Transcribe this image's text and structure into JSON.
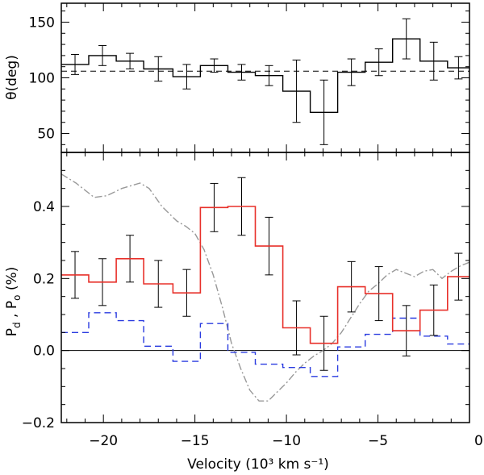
{
  "chart_data": [
    {
      "type": "line",
      "panel": "top",
      "ylabel": "θ(deg)",
      "xlim": [
        -22.3,
        0
      ],
      "ylim": [
        33,
        167
      ],
      "yticks": [
        50,
        100,
        150
      ],
      "reference_line": {
        "y": 106,
        "style": "dashed"
      },
      "series": [
        {
          "name": "theta",
          "style": "step",
          "color": "#000000",
          "bins": [
            {
              "x0": -22.3,
              "x1": -20.8,
              "y": 112,
              "err": 9
            },
            {
              "x0": -20.8,
              "x1": -19.3,
              "y": 120,
              "err": 9
            },
            {
              "x0": -19.3,
              "x1": -17.8,
              "y": 115,
              "err": 7
            },
            {
              "x0": -17.8,
              "x1": -16.2,
              "y": 108,
              "err": 11
            },
            {
              "x0": -16.2,
              "x1": -14.7,
              "y": 101,
              "err": 11
            },
            {
              "x0": -14.7,
              "x1": -13.2,
              "y": 111,
              "err": 6
            },
            {
              "x0": -13.2,
              "x1": -11.7,
              "y": 105,
              "err": 7
            },
            {
              "x0": -11.7,
              "x1": -10.2,
              "y": 102,
              "err": 9
            },
            {
              "x0": -10.2,
              "x1": -8.7,
              "y": 88,
              "err": 28
            },
            {
              "x0": -8.7,
              "x1": -7.2,
              "y": 69,
              "err": 29
            },
            {
              "x0": -7.2,
              "x1": -5.7,
              "y": 105,
              "err": 12
            },
            {
              "x0": -5.7,
              "x1": -4.2,
              "y": 114,
              "err": 12
            },
            {
              "x0": -4.2,
              "x1": -2.7,
              "y": 135,
              "err": 18
            },
            {
              "x0": -2.7,
              "x1": -1.2,
              "y": 115,
              "err": 17
            },
            {
              "x0": -1.2,
              "x1": 0,
              "y": 109,
              "err": 10
            }
          ]
        }
      ]
    },
    {
      "type": "line",
      "panel": "bottom",
      "xlabel": "Velocity (10³ km s⁻¹)",
      "ylabel": "P_d , P_o (%)",
      "ylabel_parts": {
        "p": "P",
        "sub_d": "d",
        "sep": " , ",
        "sub_o": "o",
        "pct": " (%)"
      },
      "xlim": [
        -22.3,
        0
      ],
      "ylim": [
        -0.2,
        0.55
      ],
      "yticks": [
        -0.2,
        0.0,
        0.2,
        0.4
      ],
      "ytick_labels": [
        "−0.2",
        "0.0",
        "0.2",
        "0.4"
      ],
      "xticks": [
        -20,
        -15,
        -10,
        -5,
        0
      ],
      "xtick_labels": [
        "−20",
        "−15",
        "−10",
        "−5",
        "0"
      ],
      "reference_line": {
        "y": 0,
        "style": "solid"
      },
      "series": [
        {
          "name": "Pd",
          "style": "step",
          "color": "#e8302a",
          "bins": [
            {
              "x0": -22.3,
              "x1": -20.8,
              "y": 0.21,
              "err": 0.065
            },
            {
              "x0": -20.8,
              "x1": -19.3,
              "y": 0.19,
              "err": 0.065
            },
            {
              "x0": -19.3,
              "x1": -17.8,
              "y": 0.255,
              "err": 0.065
            },
            {
              "x0": -17.8,
              "x1": -16.2,
              "y": 0.185,
              "err": 0.065
            },
            {
              "x0": -16.2,
              "x1": -14.7,
              "y": 0.16,
              "err": 0.065
            },
            {
              "x0": -14.7,
              "x1": -13.2,
              "y": 0.397,
              "err": 0.067
            },
            {
              "x0": -13.2,
              "x1": -11.7,
              "y": 0.4,
              "err": 0.08
            },
            {
              "x0": -11.7,
              "x1": -10.2,
              "y": 0.29,
              "err": 0.08
            },
            {
              "x0": -10.2,
              "x1": -8.7,
              "y": 0.063,
              "err": 0.075
            },
            {
              "x0": -8.7,
              "x1": -7.2,
              "y": 0.02,
              "err": 0.075
            },
            {
              "x0": -7.2,
              "x1": -5.7,
              "y": 0.177,
              "err": 0.07
            },
            {
              "x0": -5.7,
              "x1": -4.2,
              "y": 0.158,
              "err": 0.075
            },
            {
              "x0": -4.2,
              "x1": -2.7,
              "y": 0.055,
              "err": 0.07
            },
            {
              "x0": -2.7,
              "x1": -1.2,
              "y": 0.112,
              "err": 0.07
            },
            {
              "x0": -1.2,
              "x1": 0,
              "y": 0.205,
              "err": 0.065
            }
          ]
        },
        {
          "name": "Po",
          "style": "step-dashed",
          "color": "#2a3be0",
          "bins": [
            {
              "x0": -22.3,
              "x1": -20.8,
              "y": 0.05
            },
            {
              "x0": -20.8,
              "x1": -19.3,
              "y": 0.105
            },
            {
              "x0": -19.3,
              "x1": -17.8,
              "y": 0.083
            },
            {
              "x0": -17.8,
              "x1": -16.2,
              "y": 0.012
            },
            {
              "x0": -16.2,
              "x1": -14.7,
              "y": -0.03
            },
            {
              "x0": -14.7,
              "x1": -13.2,
              "y": 0.075
            },
            {
              "x0": -13.2,
              "x1": -11.7,
              "y": -0.005
            },
            {
              "x0": -11.7,
              "x1": -10.2,
              "y": -0.038
            },
            {
              "x0": -10.2,
              "x1": -8.7,
              "y": -0.047
            },
            {
              "x0": -8.7,
              "x1": -7.2,
              "y": -0.072
            },
            {
              "x0": -7.2,
              "x1": -5.7,
              "y": 0.01
            },
            {
              "x0": -5.7,
              "x1": -4.2,
              "y": 0.045
            },
            {
              "x0": -4.2,
              "x1": -2.7,
              "y": 0.09
            },
            {
              "x0": -2.7,
              "x1": -1.2,
              "y": 0.04
            },
            {
              "x0": -1.2,
              "x1": 0,
              "y": 0.018
            }
          ]
        },
        {
          "name": "flux",
          "style": "dash-dot",
          "color": "#999999",
          "x": [
            -22.3,
            -21.5,
            -20.5,
            -19.8,
            -19.0,
            -18.0,
            -17.5,
            -16.8,
            -16.0,
            -15.5,
            -15.0,
            -14.5,
            -14.0,
            -13.5,
            -13.0,
            -12.5,
            -12.0,
            -11.5,
            -11.0,
            -10.5,
            -10.0,
            -9.5,
            -9.0,
            -8.5,
            -8.0,
            -7.5,
            -7.0,
            -6.5,
            -6.0,
            -5.5,
            -5.0,
            -4.5,
            -4.0,
            -3.5,
            -3.0,
            -2.5,
            -2.0,
            -1.5,
            -1.0,
            -0.5,
            0.0
          ],
          "y": [
            0.49,
            0.465,
            0.425,
            0.43,
            0.45,
            0.465,
            0.45,
            0.4,
            0.36,
            0.345,
            0.325,
            0.28,
            0.21,
            0.12,
            0.02,
            -0.05,
            -0.11,
            -0.14,
            -0.14,
            -0.115,
            -0.09,
            -0.06,
            -0.035,
            -0.015,
            0.0,
            0.02,
            0.05,
            0.09,
            0.13,
            0.165,
            0.185,
            0.21,
            0.225,
            0.215,
            0.205,
            0.22,
            0.225,
            0.2,
            0.22,
            0.235,
            0.245
          ]
        }
      ]
    }
  ]
}
